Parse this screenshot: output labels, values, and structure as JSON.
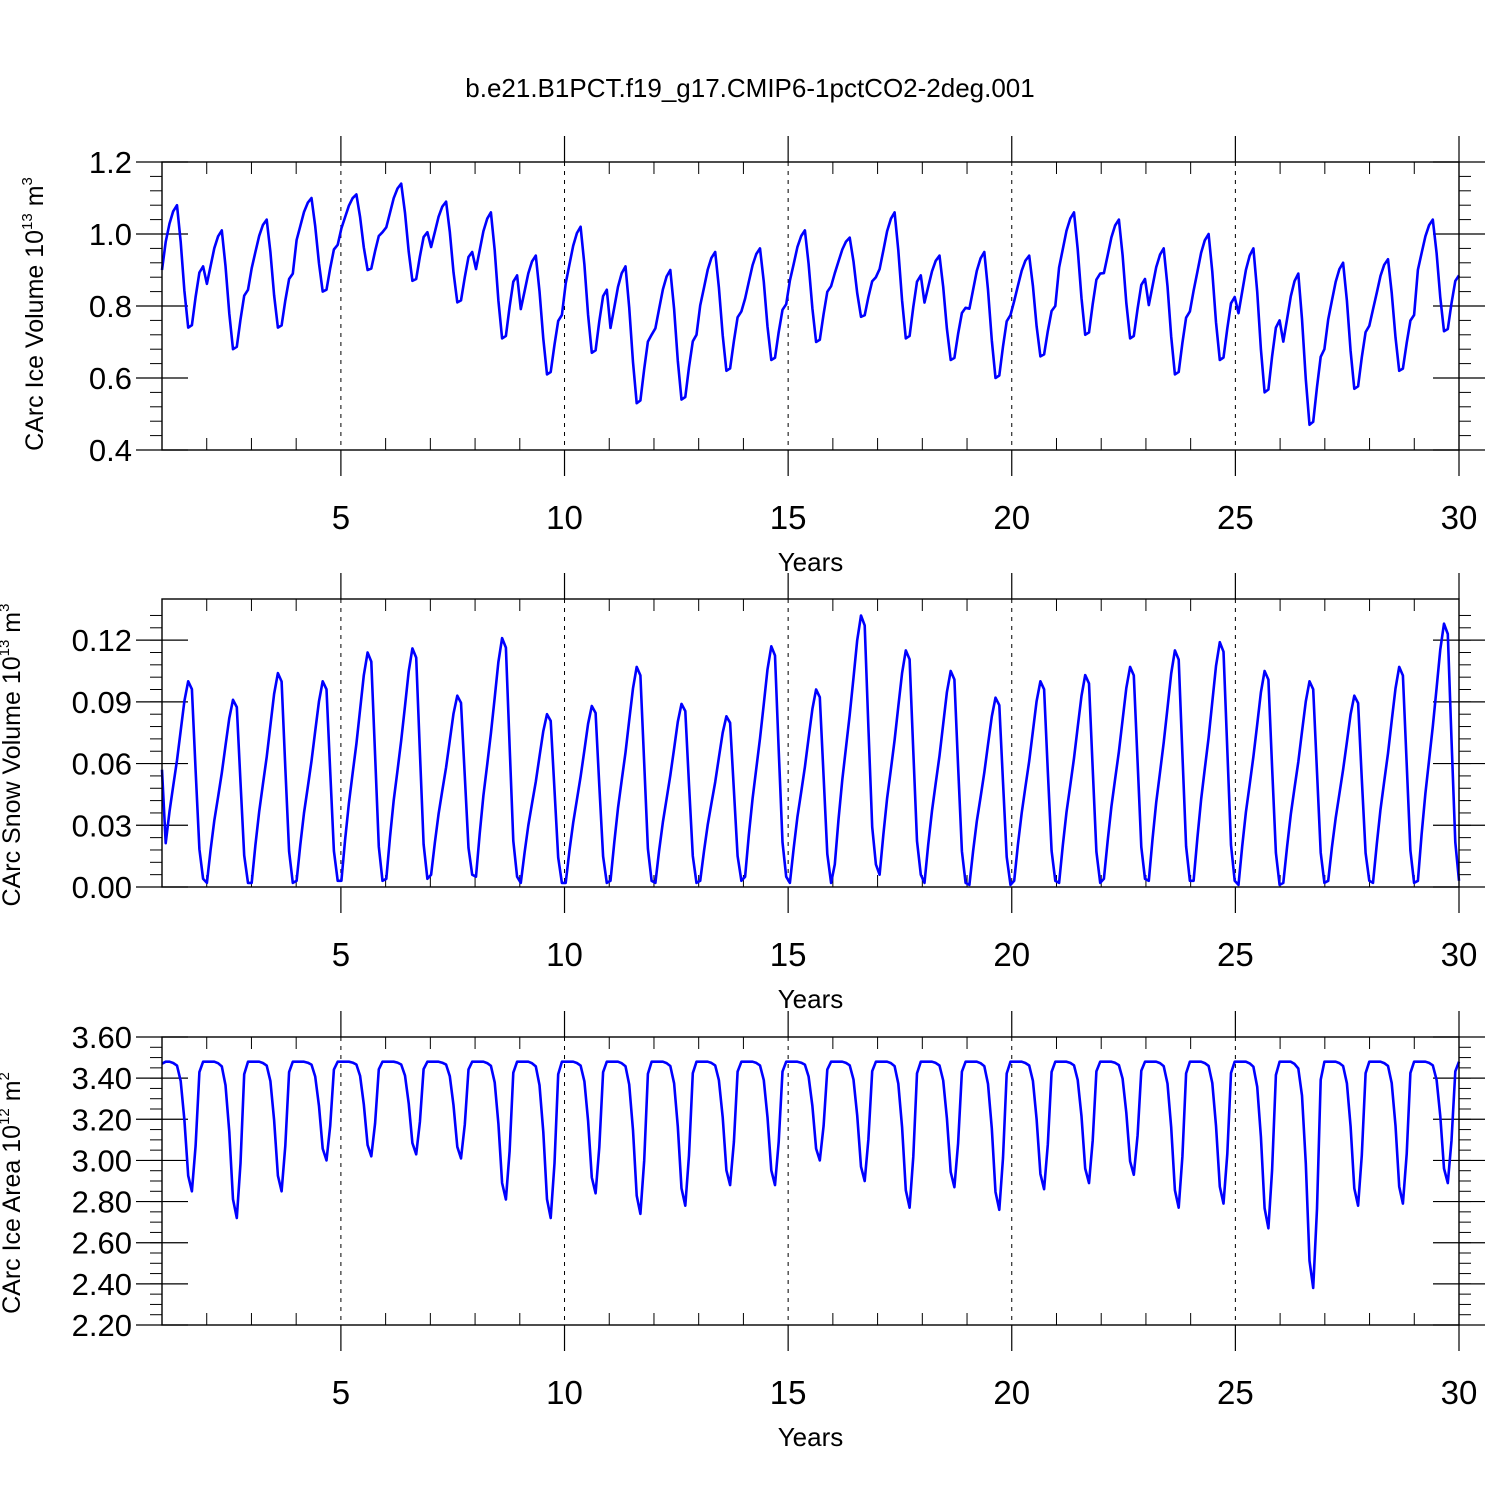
{
  "chart_data": {
    "title": "b.e21.B1PCT.f19_g17.CMIP6-1pctCO2-2deg.001",
    "panels": [
      {
        "type": "line",
        "ylabel": {
          "base": "CArc Ice Volume 10",
          "exp": "13",
          "unit": " m",
          "unit_exp": "3"
        },
        "xlabel": "Years",
        "xlim": [
          1,
          30
        ],
        "ylim": [
          0.4,
          1.2
        ],
        "xticks": [
          5,
          10,
          15,
          20,
          25,
          30
        ],
        "xtick_labels": [
          "5",
          "10",
          "15",
          "20",
          "25",
          "30"
        ],
        "yticks": [
          0.4,
          0.6,
          0.8,
          1.0,
          1.2
        ],
        "ytick_labels": [
          "0.4",
          "0.6",
          "0.8",
          "1.0",
          "1.2"
        ],
        "yminor_step": 0.04,
        "grid_x": "dashed at major ticks",
        "series": [
          {
            "name": "CArc Ice Volume",
            "color": "#0000ff",
            "months": 348,
            "year_max": [
              1.08,
              1.01,
              1.04,
              1.1,
              1.11,
              1.14,
              1.09,
              1.06,
              0.94,
              1.02,
              0.91,
              0.9,
              0.95,
              0.96,
              1.01,
              0.99,
              1.06,
              0.94,
              0.95,
              0.94,
              1.06,
              1.04,
              0.96,
              1.0,
              0.96,
              0.89,
              0.92,
              0.93,
              1.04
            ],
            "year_min": [
              0.74,
              0.68,
              0.74,
              0.84,
              0.9,
              0.87,
              0.81,
              0.71,
              0.61,
              0.67,
              0.53,
              0.54,
              0.62,
              0.65,
              0.7,
              0.77,
              0.71,
              0.65,
              0.6,
              0.66,
              0.72,
              0.71,
              0.61,
              0.65,
              0.56,
              0.47,
              0.57,
              0.62,
              0.73
            ],
            "start": 0.9
          }
        ]
      },
      {
        "type": "line",
        "ylabel": {
          "base": "CArc Snow Volume 10",
          "exp": "13",
          "unit": " m",
          "unit_exp": "3"
        },
        "xlabel": "Years",
        "xlim": [
          1,
          30
        ],
        "ylim": [
          0.0,
          0.14
        ],
        "xticks": [
          5,
          10,
          15,
          20,
          25,
          30
        ],
        "xtick_labels": [
          "5",
          "10",
          "15",
          "20",
          "25",
          "30"
        ],
        "yticks": [
          0.0,
          0.03,
          0.06,
          0.09,
          0.12
        ],
        "ytick_labels": [
          "0.00",
          "0.03",
          "0.06",
          "0.09",
          "0.12"
        ],
        "yminor_step": 0.006,
        "grid_x": "dashed at major ticks",
        "series": [
          {
            "name": "CArc Snow Volume",
            "color": "#0000ff",
            "months": 348,
            "year_max": [
              0.1,
              0.091,
              0.104,
              0.1,
              0.114,
              0.116,
              0.093,
              0.121,
              0.084,
              0.088,
              0.107,
              0.089,
              0.083,
              0.117,
              0.096,
              0.132,
              0.115,
              0.105,
              0.092,
              0.1,
              0.103,
              0.107,
              0.115,
              0.119,
              0.105,
              0.1,
              0.093,
              0.107,
              0.128
            ],
            "year_min": [
              0.004,
              0.002,
              0.002,
              0.003,
              0.003,
              0.004,
              0.006,
              0.005,
              0.002,
              0.002,
              0.003,
              0.002,
              0.003,
              0.005,
              0.002,
              0.011,
              0.006,
              0.002,
              0.001,
              0.003,
              0.002,
              0.004,
              0.003,
              0.003,
              0.001,
              0.002,
              0.003,
              0.002,
              0.003
            ],
            "start": 0.057
          }
        ]
      },
      {
        "type": "line",
        "ylabel": {
          "base": "CArc Ice Area 10",
          "exp": "12",
          "unit": " m",
          "unit_exp": "2"
        },
        "xlabel": "Years",
        "xlim": [
          1,
          30
        ],
        "ylim": [
          2.2,
          3.6
        ],
        "xticks": [
          5,
          10,
          15,
          20,
          25,
          30
        ],
        "xtick_labels": [
          "5",
          "10",
          "15",
          "20",
          "25",
          "30"
        ],
        "yticks": [
          2.2,
          2.4,
          2.6,
          2.8,
          3.0,
          3.2,
          3.4,
          3.6
        ],
        "ytick_labels": [
          "2.20",
          "2.40",
          "2.60",
          "2.80",
          "3.00",
          "3.20",
          "3.40",
          "3.60"
        ],
        "yminor_step": 0.05,
        "grid_x": "dashed at major ticks",
        "series": [
          {
            "name": "CArc Ice Area",
            "color": "#0000ff",
            "months": 348,
            "year_max": [
              3.48,
              3.48,
              3.48,
              3.48,
              3.48,
              3.48,
              3.48,
              3.48,
              3.48,
              3.48,
              3.48,
              3.48,
              3.48,
              3.48,
              3.48,
              3.48,
              3.48,
              3.48,
              3.48,
              3.48,
              3.48,
              3.48,
              3.48,
              3.48,
              3.48,
              3.48,
              3.48,
              3.48,
              3.48
            ],
            "year_min": [
              2.85,
              2.72,
              2.85,
              3.0,
              3.02,
              3.03,
              3.01,
              2.81,
              2.72,
              2.84,
              2.74,
              2.78,
              2.88,
              2.88,
              3.0,
              2.9,
              2.77,
              2.87,
              2.76,
              2.86,
              2.89,
              2.93,
              2.77,
              2.79,
              2.67,
              2.38,
              2.78,
              2.79,
              2.89
            ],
            "start": 3.47,
            "end": 3.48
          }
        ]
      }
    ]
  }
}
